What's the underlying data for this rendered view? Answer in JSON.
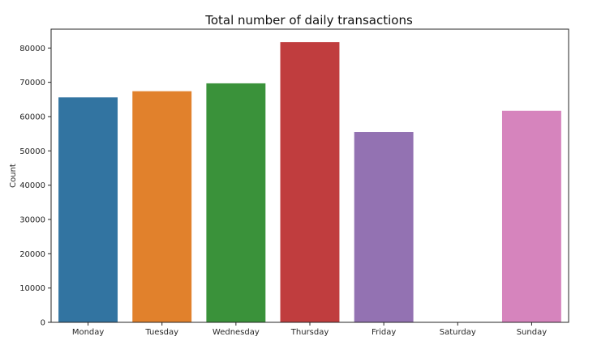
{
  "chart_data": {
    "type": "bar",
    "title": "Total number of daily transactions",
    "xlabel": "",
    "ylabel": "Count",
    "categories": [
      "Monday",
      "Tuesday",
      "Wednesday",
      "Thursday",
      "Friday",
      "Saturday",
      "Sunday"
    ],
    "values": [
      65600,
      67400,
      69700,
      81700,
      55500,
      0,
      61700
    ],
    "ylim": [
      0,
      85500
    ],
    "yticks": [
      0,
      10000,
      20000,
      30000,
      40000,
      50000,
      60000,
      70000,
      80000
    ],
    "grid": false,
    "colors": [
      "#3274a1",
      "#e1812c",
      "#3a923a",
      "#c03d3e",
      "#9372b2",
      "#845b53",
      "#d684bd"
    ]
  }
}
